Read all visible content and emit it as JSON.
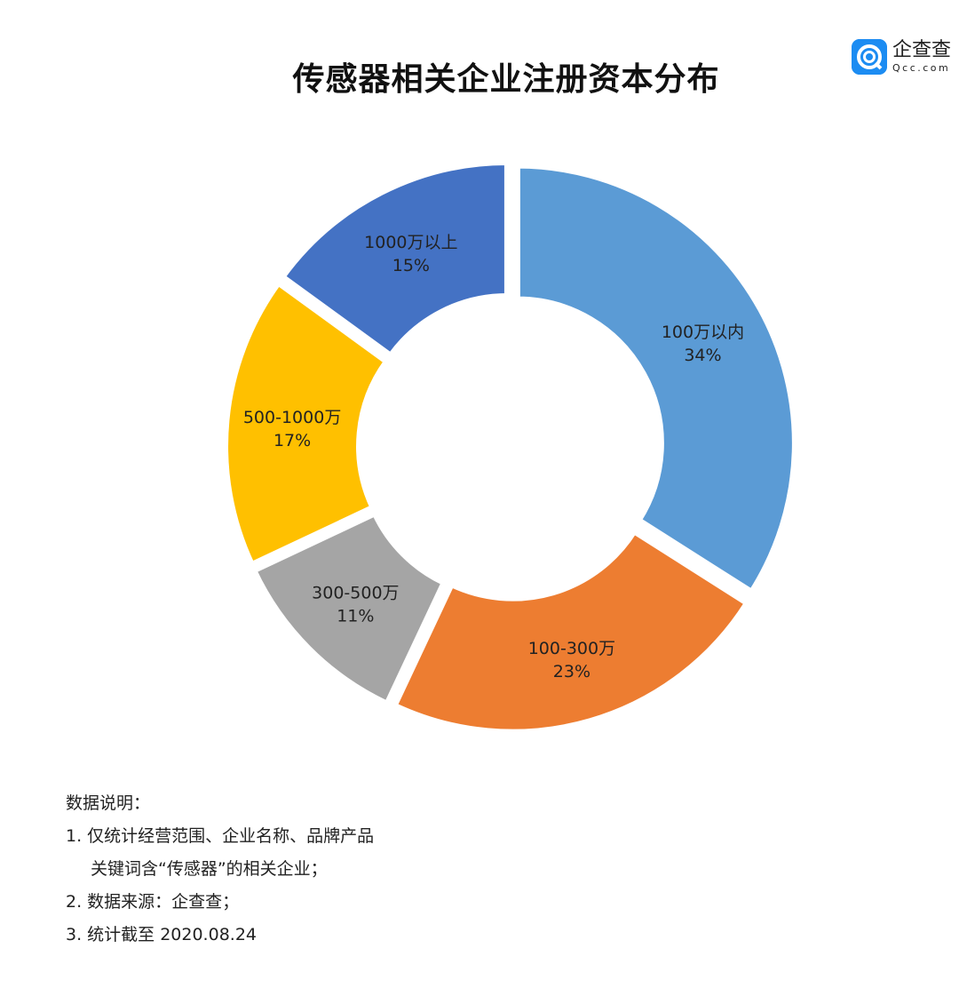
{
  "title": "传感器相关企业注册资本分布",
  "logo": {
    "cn": "企查查",
    "en": "Qcc.com"
  },
  "chart_data": {
    "type": "pie",
    "donut": true,
    "title": "传感器相关企业注册资本分布",
    "start": "top",
    "direction": "clockwise",
    "slices": [
      {
        "label": "100万以内",
        "value": 34,
        "value_label": "34%",
        "color": "#5b9bd5"
      },
      {
        "label": "100-300万",
        "value": 23,
        "value_label": "23%",
        "color": "#ed7d31"
      },
      {
        "label": "300-500万",
        "value": 11,
        "value_label": "11%",
        "color": "#a5a5a5"
      },
      {
        "label": "500-1000万",
        "value": 17,
        "value_label": "17%",
        "color": "#ffc000"
      },
      {
        "label": "1000万以上",
        "value": 15,
        "value_label": "15%",
        "color": "#4472c4"
      }
    ]
  },
  "notes": {
    "heading": "数据说明：",
    "items": [
      "1. 仅统计经营范围、企业名称、品牌产品",
      "关键词含“传感器”的相关企业；",
      "2. 数据来源：企查查；",
      "3. 统计截至 2020.08.24"
    ]
  }
}
